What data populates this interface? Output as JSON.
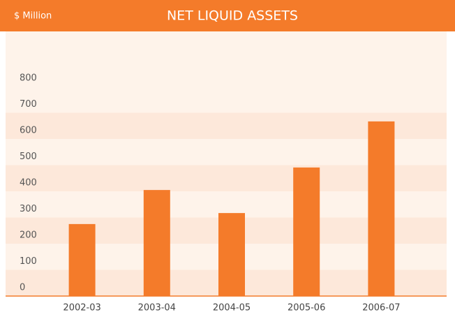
{
  "chart_data": {
    "type": "bar",
    "title": "NET LIQUID ASSETS",
    "unit_label": "$ Million",
    "categories": [
      "2002-03",
      "2003-04",
      "2004-05",
      "2005-06",
      "2006-07"
    ],
    "values": [
      275,
      405,
      317,
      491,
      667
    ],
    "color": "#f47b2a",
    "ylim": [
      0,
      1000
    ],
    "yticks": [
      0,
      100,
      200,
      300,
      400,
      500,
      600,
      700,
      800
    ],
    "grid": true
  }
}
